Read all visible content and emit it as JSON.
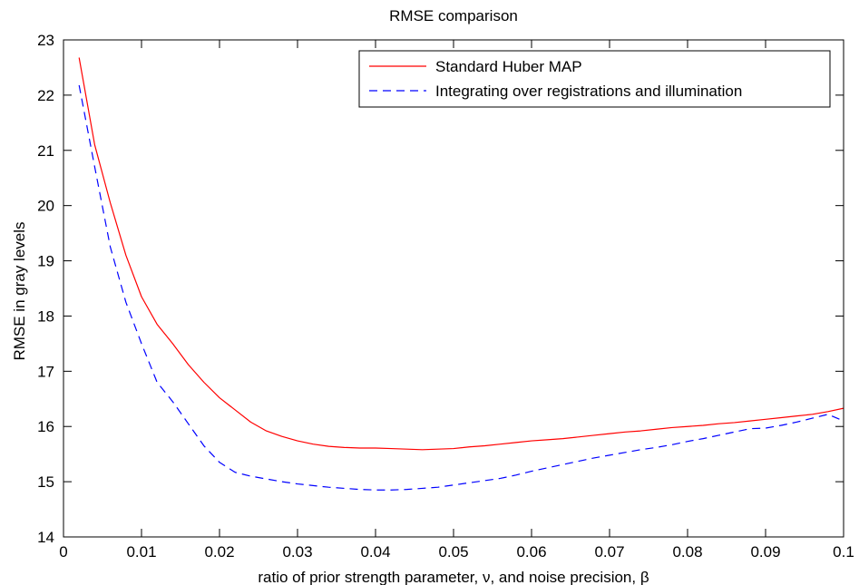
{
  "chart_data": {
    "type": "line",
    "title": "RMSE comparison",
    "xlabel": "ratio of prior strength parameter, ν, and noise precision, β",
    "ylabel": "RMSE in gray levels",
    "xlim": [
      0,
      0.1
    ],
    "ylim": [
      14,
      23
    ],
    "xticks": [
      0,
      0.01,
      0.02,
      0.03,
      0.04,
      0.05,
      0.06,
      0.07,
      0.08,
      0.09,
      0.1
    ],
    "xtick_labels": [
      "0",
      "0.01",
      "0.02",
      "0.03",
      "0.04",
      "0.05",
      "0.06",
      "0.07",
      "0.08",
      "0.09",
      "0.1"
    ],
    "yticks": [
      14,
      15,
      16,
      17,
      18,
      19,
      20,
      21,
      22,
      23
    ],
    "ytick_labels": [
      "14",
      "15",
      "16",
      "17",
      "18",
      "19",
      "20",
      "21",
      "22",
      "23"
    ],
    "grid": false,
    "legend_position": "top-right",
    "series": [
      {
        "name": "Standard Huber MAP",
        "color": "#ff0000",
        "dash": "solid",
        "x": [
          0.002,
          0.004,
          0.006,
          0.008,
          0.01,
          0.012,
          0.014,
          0.016,
          0.018,
          0.02,
          0.022,
          0.024,
          0.026,
          0.028,
          0.03,
          0.032,
          0.034,
          0.036,
          0.038,
          0.04,
          0.042,
          0.044,
          0.046,
          0.048,
          0.05,
          0.052,
          0.054,
          0.056,
          0.058,
          0.06,
          0.062,
          0.064,
          0.066,
          0.068,
          0.07,
          0.072,
          0.074,
          0.076,
          0.078,
          0.08,
          0.082,
          0.084,
          0.086,
          0.088,
          0.09,
          0.092,
          0.094,
          0.096,
          0.098,
          0.1
        ],
        "y": [
          22.68,
          21.1,
          20.05,
          19.1,
          18.35,
          17.85,
          17.5,
          17.12,
          16.8,
          16.52,
          16.3,
          16.08,
          15.92,
          15.82,
          15.74,
          15.68,
          15.64,
          15.62,
          15.61,
          15.61,
          15.6,
          15.59,
          15.58,
          15.59,
          15.6,
          15.63,
          15.65,
          15.68,
          15.71,
          15.74,
          15.76,
          15.78,
          15.81,
          15.84,
          15.87,
          15.9,
          15.92,
          15.95,
          15.98,
          16.0,
          16.02,
          16.05,
          16.07,
          16.1,
          16.13,
          16.16,
          16.19,
          16.22,
          16.27,
          16.33
        ]
      },
      {
        "name": "Integrating over registrations and illumination",
        "color": "#0000ff",
        "dash": "dashed",
        "x": [
          0.002,
          0.004,
          0.006,
          0.008,
          0.01,
          0.012,
          0.014,
          0.016,
          0.018,
          0.02,
          0.022,
          0.024,
          0.026,
          0.028,
          0.03,
          0.032,
          0.034,
          0.036,
          0.038,
          0.04,
          0.042,
          0.044,
          0.046,
          0.048,
          0.05,
          0.052,
          0.054,
          0.056,
          0.058,
          0.06,
          0.062,
          0.064,
          0.066,
          0.068,
          0.07,
          0.072,
          0.074,
          0.076,
          0.078,
          0.08,
          0.082,
          0.084,
          0.086,
          0.088,
          0.09,
          0.092,
          0.094,
          0.096,
          0.098,
          0.1
        ],
        "y": [
          22.18,
          20.7,
          19.25,
          18.25,
          17.5,
          16.8,
          16.45,
          16.05,
          15.65,
          15.35,
          15.17,
          15.1,
          15.05,
          15.0,
          14.96,
          14.93,
          14.9,
          14.88,
          14.86,
          14.85,
          14.85,
          14.86,
          14.88,
          14.9,
          14.94,
          14.98,
          15.02,
          15.06,
          15.12,
          15.19,
          15.25,
          15.31,
          15.37,
          15.43,
          15.48,
          15.53,
          15.58,
          15.62,
          15.67,
          15.73,
          15.78,
          15.84,
          15.9,
          15.96,
          15.97,
          16.02,
          16.08,
          16.15,
          16.22,
          16.1
        ]
      }
    ]
  }
}
